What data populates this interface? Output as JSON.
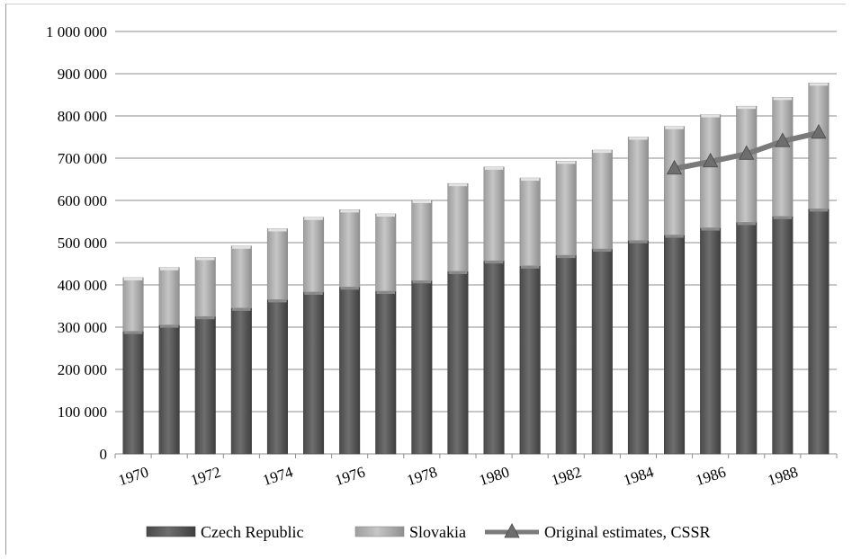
{
  "chart_data": {
    "type": "bar",
    "stacked": true,
    "title": "",
    "xlabel": "",
    "ylabel": "",
    "ylim": [
      0,
      1000000
    ],
    "y_ticks": [
      "0",
      "100 000",
      "200 000",
      "300 000",
      "400 000",
      "500 000",
      "600 000",
      "700 000",
      "800 000",
      "900 000",
      "1 000 000"
    ],
    "categories": [
      "1970",
      "1971",
      "1972",
      "1973",
      "1974",
      "1975",
      "1976",
      "1977",
      "1978",
      "1979",
      "1980",
      "1981",
      "1982",
      "1983",
      "1984",
      "1985",
      "1986",
      "1987",
      "1988",
      "1989"
    ],
    "x_tick_labels": [
      "1970",
      "",
      "1972",
      "",
      "1974",
      "",
      "1976",
      "",
      "1978",
      "",
      "1980",
      "",
      "1982",
      "",
      "1984",
      "",
      "1986",
      "",
      "1988",
      ""
    ],
    "series": [
      {
        "name": "Czech Republic",
        "kind": "bar",
        "color": "#5a5a5a",
        "values": [
          290000,
          305000,
          325000,
          345000,
          365000,
          383000,
          395000,
          385000,
          410000,
          432000,
          457000,
          445000,
          470000,
          485000,
          505000,
          518000,
          535000,
          548000,
          562000,
          580000
        ]
      },
      {
        "name": "Slovakia",
        "kind": "bar",
        "color": "#b4b4b4",
        "values": [
          127000,
          136000,
          140000,
          147000,
          168000,
          177000,
          183000,
          183000,
          190000,
          208000,
          222000,
          208000,
          223000,
          234000,
          245000,
          257000,
          268000,
          275000,
          282000,
          298000
        ]
      },
      {
        "name": "Original estimates, CSSR",
        "kind": "line",
        "color": "#7a7a7a",
        "values": [
          null,
          null,
          null,
          null,
          null,
          null,
          null,
          null,
          null,
          null,
          null,
          null,
          null,
          null,
          null,
          675000,
          692000,
          710000,
          740000,
          760000
        ]
      }
    ],
    "grid": true,
    "legend_position": "bottom"
  }
}
